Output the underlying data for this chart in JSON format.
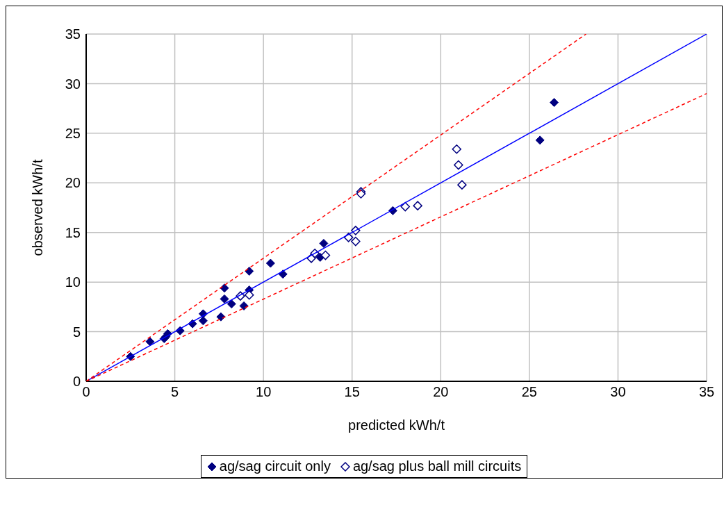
{
  "chart_data": {
    "type": "scatter",
    "xlabel": "predicted kWh/t",
    "ylabel": "observed kWh/t",
    "xlim": [
      0,
      35
    ],
    "ylim": [
      0,
      35
    ],
    "xticks": [
      0,
      5,
      10,
      15,
      20,
      25,
      30,
      35
    ],
    "yticks": [
      0,
      5,
      10,
      15,
      20,
      25,
      30,
      35
    ],
    "grid": true,
    "legend": "bottom",
    "series": [
      {
        "name": "ag/sag circuit only",
        "color": "#000080",
        "marker": "diamond",
        "x": [
          2.5,
          3.6,
          4.4,
          4.5,
          4.6,
          5.3,
          6.0,
          6.6,
          6.6,
          7.6,
          7.8,
          7.8,
          8.2,
          8.9,
          9.2,
          9.2,
          10.4,
          11.1,
          13.4,
          13.2,
          17.3,
          25.6,
          26.4
        ],
        "values": [
          2.5,
          4.0,
          4.3,
          4.5,
          4.8,
          5.1,
          5.8,
          6.8,
          6.1,
          6.5,
          9.4,
          8.3,
          7.8,
          7.6,
          11.1,
          9.2,
          11.9,
          10.8,
          13.9,
          12.5,
          17.2,
          24.3,
          28.1
        ]
      },
      {
        "name": "ag/sag plus ball mill circuits",
        "color": "#000080",
        "marker": "diamond-open",
        "x": [
          8.7,
          9.2,
          12.7,
          12.9,
          13.5,
          14.8,
          15.2,
          15.2,
          15.5,
          15.5,
          18.0,
          18.7,
          20.9,
          21.0,
          21.2
        ],
        "values": [
          8.6,
          8.7,
          12.4,
          12.9,
          12.7,
          14.5,
          14.1,
          15.2,
          19.1,
          18.9,
          17.6,
          17.7,
          23.4,
          21.8,
          19.8
        ]
      },
      {
        "type": "line",
        "color": "#0000ff",
        "line_style": "solid",
        "marker": "none",
        "x": [
          0,
          35
        ],
        "values": [
          0,
          35
        ]
      },
      {
        "type": "line",
        "color": "#ff0000",
        "line_style": "dashed",
        "marker": "none",
        "x": [
          0,
          28.2
        ],
        "values": [
          0,
          35
        ]
      },
      {
        "type": "line",
        "color": "#ff0000",
        "line_style": "dashed",
        "marker": "none",
        "x": [
          0,
          35
        ],
        "values": [
          0,
          29
        ]
      }
    ]
  }
}
